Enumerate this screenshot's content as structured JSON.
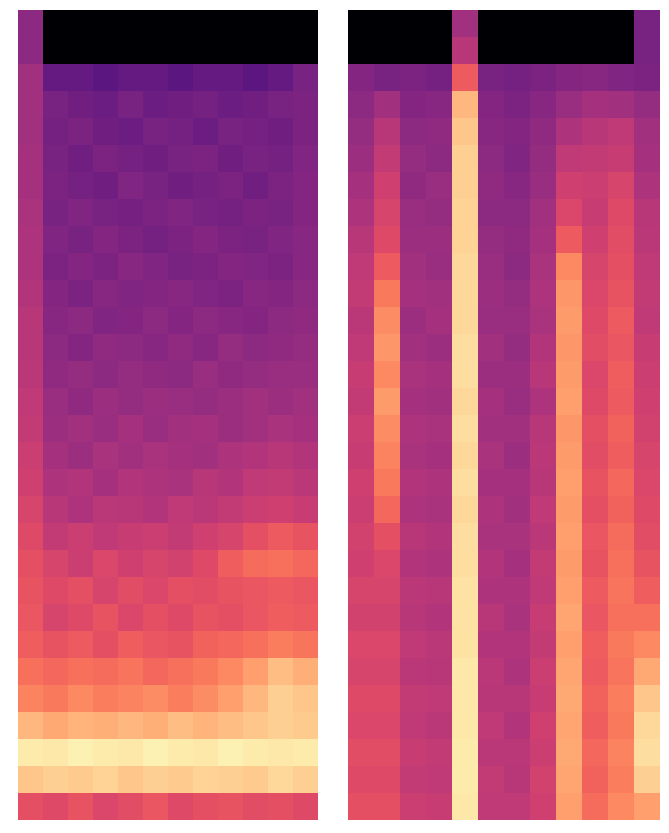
{
  "chart_data": [
    {
      "type": "heatmap",
      "color": "magma",
      "tick_labels": false,
      "zlim": [
        0,
        10
      ],
      "cells": [
        [
          4,
          0,
          0,
          0,
          0,
          0,
          0,
          0,
          0,
          0,
          0,
          0
        ],
        [
          4,
          0,
          0,
          0,
          0,
          0,
          0,
          0,
          0,
          0,
          0,
          0
        ],
        [
          4.5,
          3,
          3,
          2.8,
          3,
          3,
          2.8,
          3,
          3,
          2.8,
          3,
          3.5
        ],
        [
          4.5,
          3.5,
          3.3,
          3.2,
          3.5,
          3.2,
          3.3,
          3.4,
          3.2,
          3.3,
          3.5,
          3.6
        ],
        [
          4.5,
          3.4,
          3.6,
          3.3,
          3.2,
          3.5,
          3.4,
          3.2,
          3.5,
          3.4,
          3.3,
          3.6
        ],
        [
          4.6,
          3.5,
          3.3,
          3.6,
          3.4,
          3.3,
          3.5,
          3.6,
          3.3,
          3.5,
          3.4,
          3.7
        ],
        [
          4.6,
          3.6,
          3.4,
          3.3,
          3.7,
          3.5,
          3.3,
          3.4,
          3.6,
          3.3,
          3.6,
          3.8
        ],
        [
          4.7,
          3.5,
          3.7,
          3.5,
          3.4,
          3.6,
          3.7,
          3.5,
          3.4,
          3.6,
          3.5,
          3.8
        ],
        [
          4.8,
          3.7,
          3.5,
          3.8,
          3.6,
          3.4,
          3.6,
          3.8,
          3.6,
          3.5,
          3.7,
          3.9
        ],
        [
          4.8,
          3.6,
          3.8,
          3.6,
          3.9,
          3.7,
          3.5,
          3.6,
          3.8,
          3.7,
          3.6,
          3.9
        ],
        [
          4.9,
          3.8,
          3.6,
          3.9,
          3.7,
          3.8,
          3.9,
          3.7,
          3.6,
          3.9,
          3.8,
          4
        ],
        [
          5,
          3.9,
          4,
          3.7,
          3.8,
          4,
          3.8,
          4,
          3.9,
          3.8,
          4,
          4.1
        ],
        [
          5,
          4,
          3.8,
          4.1,
          4,
          3.9,
          4.1,
          3.9,
          4.2,
          4,
          4.1,
          4.2
        ],
        [
          5.1,
          4.1,
          4.2,
          4,
          4.2,
          4.1,
          4,
          4.3,
          4.1,
          4.2,
          4.3,
          4.3
        ],
        [
          5.2,
          4.3,
          4.1,
          4.4,
          4.2,
          4.4,
          4.3,
          4.2,
          4.4,
          4.5,
          4.4,
          4.5
        ],
        [
          5.3,
          4.4,
          4.5,
          4.3,
          4.6,
          4.3,
          4.5,
          4.6,
          4.4,
          4.5,
          4.7,
          4.6
        ],
        [
          5.5,
          4.6,
          4.4,
          4.7,
          4.5,
          4.7,
          4.6,
          4.5,
          4.8,
          4.9,
          5,
          4.9
        ],
        [
          5.6,
          4.8,
          4.9,
          4.6,
          4.9,
          4.8,
          4.7,
          5,
          4.9,
          5.2,
          5.3,
          5.1
        ],
        [
          5.8,
          5,
          4.8,
          5.1,
          5,
          4.9,
          5.2,
          5.1,
          5.3,
          5.5,
          5.6,
          5.4
        ],
        [
          6,
          5.3,
          5.5,
          5.2,
          5.4,
          5.5,
          5.3,
          5.6,
          5.8,
          6.2,
          6.5,
          6.3
        ],
        [
          6.2,
          5.8,
          5.5,
          5.9,
          5.6,
          5.8,
          5.7,
          6,
          6.6,
          6.9,
          7,
          6.8
        ],
        [
          6.3,
          6,
          6.2,
          5.8,
          6.1,
          5.9,
          6.2,
          6.1,
          6.3,
          6.4,
          6.5,
          6.4
        ],
        [
          6.4,
          5.8,
          6,
          6.3,
          5.9,
          6.2,
          6,
          6.3,
          6.2,
          6.4,
          6.6,
          6.5
        ],
        [
          6.6,
          6.3,
          6.5,
          6.2,
          6.6,
          6.4,
          6.3,
          6.7,
          6.8,
          7,
          7.3,
          7.1
        ],
        [
          7,
          6.8,
          7,
          6.9,
          7.1,
          6.8,
          7,
          7.2,
          7.5,
          8,
          8.6,
          8.3
        ],
        [
          7.4,
          7.2,
          7.5,
          7.3,
          7.4,
          7.6,
          7.3,
          7.6,
          8,
          8.5,
          9,
          8.8
        ],
        [
          8.5,
          8.2,
          8.4,
          8.3,
          8.5,
          8.3,
          8.6,
          8.4,
          8.6,
          8.8,
          9,
          8.9
        ],
        [
          9.6,
          9.5,
          9.7,
          9.6,
          9.5,
          9.7,
          9.6,
          9.5,
          9.7,
          9.6,
          9.5,
          9.6
        ],
        [
          8.8,
          9,
          8.9,
          9.1,
          8.8,
          9,
          8.9,
          9.1,
          9,
          8.9,
          9.2,
          9
        ],
        [
          6.2,
          6,
          6.3,
          5.9,
          6.1,
          6.4,
          6,
          6.2,
          6.3,
          6.1,
          6.2,
          6
        ]
      ]
    },
    {
      "type": "heatmap",
      "color": "magma",
      "tick_labels": false,
      "zlim": [
        0,
        10
      ],
      "cells": [
        [
          0,
          0,
          0,
          0,
          4.5,
          0,
          0,
          0,
          0,
          0,
          0,
          3.5
        ],
        [
          0,
          0,
          0,
          0,
          5,
          0,
          0,
          0,
          0,
          0,
          0,
          3.5
        ],
        [
          3.8,
          3.5,
          3.6,
          3.4,
          6.5,
          3.5,
          3.4,
          3.6,
          3.8,
          3.9,
          3.7,
          3.6
        ],
        [
          4,
          4.5,
          3.8,
          3.9,
          8.5,
          3.8,
          3.6,
          3.9,
          4.3,
          4.6,
          4.5,
          4.2
        ],
        [
          4.2,
          5,
          4,
          4.1,
          8.8,
          3.9,
          3.8,
          4.1,
          4.8,
          5,
          5.2,
          4.5
        ],
        [
          4.4,
          5.3,
          4.2,
          4,
          9,
          4,
          3.7,
          4.2,
          5.2,
          5.3,
          5.4,
          4.6
        ],
        [
          4.6,
          5.6,
          4.1,
          4.3,
          9,
          4.1,
          3.9,
          4.3,
          5.6,
          5.5,
          5.8,
          4.8
        ],
        [
          4.8,
          5.8,
          4.3,
          4.2,
          9.1,
          4,
          4,
          4.5,
          5.9,
          5.4,
          6,
          5
        ],
        [
          5,
          6,
          4.4,
          4.4,
          9.1,
          4.2,
          4.1,
          4.6,
          6.5,
          5.6,
          6.1,
          5.1
        ],
        [
          5.2,
          6.5,
          4.5,
          4.3,
          9.2,
          4.3,
          4,
          4.7,
          7.5,
          5.8,
          6.2,
          5.2
        ],
        [
          5.3,
          7.2,
          4.6,
          4.5,
          9.2,
          4.4,
          4.2,
          4.8,
          7.8,
          5.9,
          6.3,
          5.3
        ],
        [
          5.1,
          7.6,
          4.4,
          4.6,
          9.2,
          4.3,
          4.3,
          4.7,
          7.9,
          6,
          6.5,
          5.2
        ],
        [
          5.2,
          7.8,
          4.5,
          4.4,
          9.3,
          4.5,
          4.2,
          4.9,
          7.8,
          6.1,
          6.4,
          5.4
        ],
        [
          5.4,
          7.5,
          4.7,
          4.6,
          9.3,
          4.4,
          4.4,
          5,
          7.9,
          5.9,
          6.6,
          5.5
        ],
        [
          5.3,
          7.9,
          4.6,
          4.5,
          9.2,
          4.6,
          4.3,
          4.8,
          8,
          6,
          6.5,
          5.6
        ],
        [
          5.5,
          7.6,
          4.8,
          4.7,
          9.3,
          4.5,
          4.5,
          5,
          7.8,
          6.2,
          6.7,
          5.7
        ],
        [
          5.4,
          7.4,
          4.7,
          4.6,
          9.2,
          4.7,
          4.4,
          5.1,
          7.9,
          6.1,
          6.6,
          5.8
        ],
        [
          5.6,
          7.2,
          4.9,
          4.8,
          9.3,
          4.6,
          4.6,
          5,
          8,
          6.3,
          6.8,
          5.9
        ],
        [
          5.5,
          6.8,
          4.8,
          4.7,
          9.2,
          4.8,
          4.5,
          5.2,
          7.9,
          6.2,
          6.7,
          6
        ],
        [
          5.7,
          6.2,
          5,
          4.9,
          9.3,
          4.7,
          4.7,
          5.1,
          8,
          6.4,
          6.9,
          6.1
        ],
        [
          5.6,
          5.9,
          4.9,
          4.8,
          9.3,
          4.9,
          4.6,
          5.3,
          7.9,
          6.3,
          7,
          6.3
        ],
        [
          5.8,
          5.8,
          5.1,
          5,
          9.4,
          4.8,
          4.8,
          5.2,
          8,
          6.5,
          7.1,
          6.6
        ],
        [
          5.7,
          5.7,
          5,
          4.9,
          9.4,
          5,
          4.7,
          5.4,
          8.1,
          6.4,
          7,
          7
        ],
        [
          5.9,
          5.9,
          5.2,
          5.1,
          9.4,
          4.9,
          4.9,
          5.3,
          8,
          6.6,
          7.2,
          7.5
        ],
        [
          5.8,
          5.8,
          5.1,
          5,
          9.5,
          5.1,
          4.8,
          5.5,
          8.1,
          6.5,
          7.1,
          8.2
        ],
        [
          6,
          6,
          5.3,
          5.2,
          9.5,
          5,
          5,
          5.4,
          8.2,
          6.7,
          7.3,
          8.8
        ],
        [
          5.9,
          5.9,
          5.2,
          5.1,
          9.5,
          5.2,
          4.9,
          5.6,
          8.1,
          6.6,
          7.2,
          9.2
        ],
        [
          6.1,
          6.1,
          5.4,
          5.3,
          9.6,
          5.1,
          5.1,
          5.5,
          8.2,
          6.8,
          7.4,
          9.3
        ],
        [
          6,
          6,
          5.3,
          5.2,
          9.6,
          5.3,
          5,
          5.7,
          8.1,
          6.7,
          7.3,
          9
        ],
        [
          6.2,
          6.2,
          5.5,
          5.4,
          9.5,
          5.2,
          5.2,
          5.6,
          8,
          6.9,
          7.5,
          8
        ]
      ]
    }
  ]
}
